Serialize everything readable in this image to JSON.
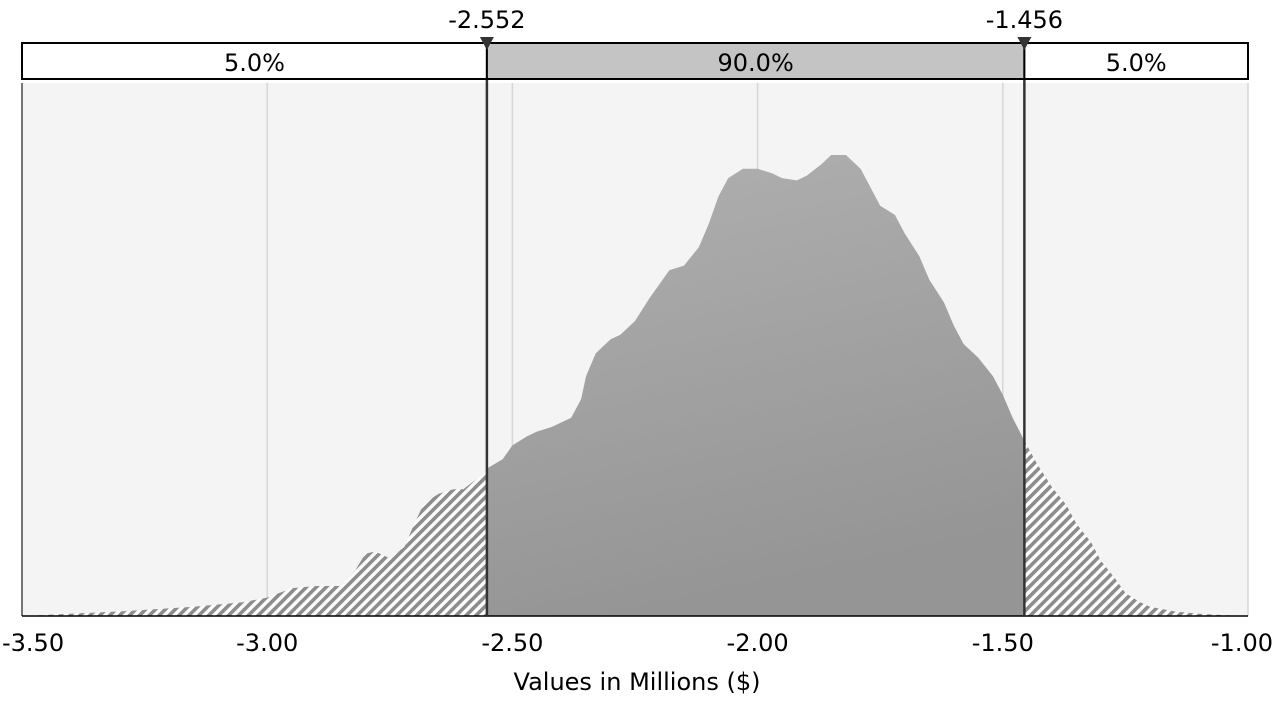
{
  "chart_data": {
    "type": "area",
    "xlabel": "Values in Millions ($)",
    "xlim": [
      -3.5,
      -1.0
    ],
    "x_ticks": [
      {
        "value": -3.5,
        "label": "-3.50"
      },
      {
        "value": -3.0,
        "label": "-3.00"
      },
      {
        "value": -2.5,
        "label": "-2.50"
      },
      {
        "value": -2.0,
        "label": "-2.00"
      },
      {
        "value": -1.5,
        "label": "-1.50"
      },
      {
        "value": -1.0,
        "label": "-1.00"
      }
    ],
    "grid": true,
    "markers": [
      {
        "value": -2.552,
        "label": "-2.552"
      },
      {
        "value": -1.456,
        "label": "-1.456"
      }
    ],
    "percent_bands": [
      {
        "label": "5.0%",
        "from": -3.5,
        "to": -2.552,
        "shaded": false
      },
      {
        "label": "90.0%",
        "from": -2.552,
        "to": -1.456,
        "shaded": true
      },
      {
        "label": "5.0%",
        "from": -1.456,
        "to": -1.0,
        "shaded": false
      }
    ],
    "density": {
      "x": [
        -3.5,
        -3.3,
        -3.15,
        -3.05,
        -3.0,
        -2.95,
        -2.9,
        -2.85,
        -2.82,
        -2.8,
        -2.78,
        -2.75,
        -2.72,
        -2.7,
        -2.68,
        -2.65,
        -2.62,
        -2.6,
        -2.57,
        -2.552,
        -2.52,
        -2.5,
        -2.47,
        -2.45,
        -2.42,
        -2.4,
        -2.38,
        -2.36,
        -2.35,
        -2.33,
        -2.3,
        -2.28,
        -2.25,
        -2.22,
        -2.2,
        -2.18,
        -2.15,
        -2.12,
        -2.1,
        -2.08,
        -2.06,
        -2.03,
        -2.0,
        -1.97,
        -1.95,
        -1.92,
        -1.9,
        -1.87,
        -1.85,
        -1.82,
        -1.79,
        -1.77,
        -1.75,
        -1.72,
        -1.7,
        -1.67,
        -1.65,
        -1.62,
        -1.6,
        -1.58,
        -1.55,
        -1.52,
        -1.5,
        -1.48,
        -1.456,
        -1.43,
        -1.4,
        -1.37,
        -1.35,
        -1.32,
        -1.3,
        -1.27,
        -1.25,
        -1.22,
        -1.2,
        -1.15,
        -1.1,
        -1.05,
        -1.0
      ],
      "y": [
        0.0,
        0.01,
        0.02,
        0.03,
        0.04,
        0.06,
        0.065,
        0.065,
        0.1,
        0.135,
        0.14,
        0.125,
        0.15,
        0.2,
        0.245,
        0.265,
        0.275,
        0.275,
        0.3,
        0.32,
        0.34,
        0.37,
        0.39,
        0.4,
        0.41,
        0.42,
        0.43,
        0.47,
        0.52,
        0.57,
        0.6,
        0.61,
        0.64,
        0.69,
        0.72,
        0.75,
        0.76,
        0.8,
        0.85,
        0.91,
        0.95,
        0.97,
        0.97,
        0.96,
        0.95,
        0.945,
        0.955,
        0.98,
        1.0,
        1.0,
        0.97,
        0.93,
        0.89,
        0.87,
        0.83,
        0.78,
        0.73,
        0.68,
        0.63,
        0.59,
        0.56,
        0.52,
        0.48,
        0.43,
        0.38,
        0.33,
        0.28,
        0.24,
        0.2,
        0.16,
        0.12,
        0.08,
        0.05,
        0.03,
        0.02,
        0.01,
        0.005,
        0.002,
        0.0
      ]
    }
  }
}
